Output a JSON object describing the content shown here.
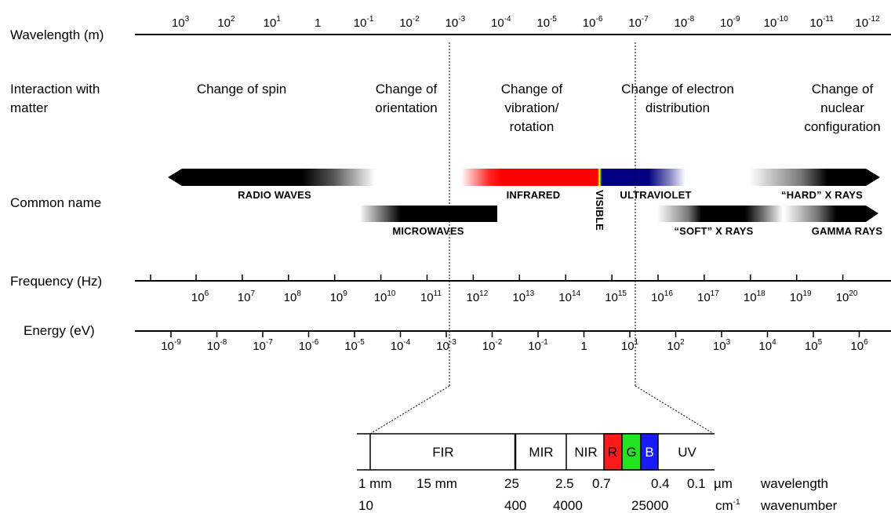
{
  "rows": {
    "wavelength": "Wavelength (m)",
    "interaction": [
      "Interaction with",
      "matter"
    ],
    "common": "Common name",
    "frequency": "Frequency (Hz)",
    "energy": "Energy (eV)"
  },
  "wavelength_ticks": [
    {
      "base": "10",
      "exp": "3"
    },
    {
      "base": "10",
      "exp": "2"
    },
    {
      "base": "10",
      "exp": "1"
    },
    {
      "base": "1",
      "exp": ""
    },
    {
      "base": "10",
      "exp": "-1"
    },
    {
      "base": "10",
      "exp": "-2"
    },
    {
      "base": "10",
      "exp": "-3"
    },
    {
      "base": "10",
      "exp": "-4"
    },
    {
      "base": "10",
      "exp": "-5"
    },
    {
      "base": "10",
      "exp": "-6"
    },
    {
      "base": "10",
      "exp": "-7"
    },
    {
      "base": "10",
      "exp": "-8"
    },
    {
      "base": "10",
      "exp": "-9"
    },
    {
      "base": "10",
      "exp": "-10"
    },
    {
      "base": "10",
      "exp": "-11"
    },
    {
      "base": "10",
      "exp": "-12"
    }
  ],
  "interactions": [
    [
      "Change of spin"
    ],
    [
      "Change of",
      "orientation"
    ],
    [
      "Change of",
      "vibration/",
      "rotation"
    ],
    [
      "Change of electron",
      "distribution"
    ],
    [
      "Change of",
      "nuclear",
      "configuration"
    ]
  ],
  "bands": {
    "radio": "RADIO WAVES",
    "microwaves": "MICROWAVES",
    "infrared": "INFRARED",
    "visible": "VISIBLE",
    "ultraviolet": "ULTRAVIOLET",
    "soft_xrays": "“SOFT” X RAYS",
    "hard_xrays": "“HARD” X RAYS",
    "gamma": "GAMMA RAYS"
  },
  "frequency_ticks": [
    {
      "base": "10",
      "exp": "6"
    },
    {
      "base": "10",
      "exp": "7"
    },
    {
      "base": "10",
      "exp": "8"
    },
    {
      "base": "10",
      "exp": "9"
    },
    {
      "base": "10",
      "exp": "10"
    },
    {
      "base": "10",
      "exp": "11"
    },
    {
      "base": "10",
      "exp": "12"
    },
    {
      "base": "10",
      "exp": "13"
    },
    {
      "base": "10",
      "exp": "14"
    },
    {
      "base": "10",
      "exp": "15"
    },
    {
      "base": "10",
      "exp": "16"
    },
    {
      "base": "10",
      "exp": "17"
    },
    {
      "base": "10",
      "exp": "18"
    },
    {
      "base": "10",
      "exp": "19"
    },
    {
      "base": "10",
      "exp": "20"
    }
  ],
  "energy_ticks": [
    {
      "base": "10",
      "exp": "-9"
    },
    {
      "base": "10",
      "exp": "-8"
    },
    {
      "base": "10",
      "exp": "-7"
    },
    {
      "base": "10",
      "exp": "-6"
    },
    {
      "base": "10",
      "exp": "-5"
    },
    {
      "base": "10",
      "exp": "-4"
    },
    {
      "base": "10",
      "exp": "-3"
    },
    {
      "base": "10",
      "exp": "-2"
    },
    {
      "base": "10",
      "exp": "-1"
    },
    {
      "base": "1",
      "exp": ""
    },
    {
      "base": "10",
      "exp": "1"
    },
    {
      "base": "10",
      "exp": "2"
    },
    {
      "base": "10",
      "exp": "3"
    },
    {
      "base": "10",
      "exp": "4"
    },
    {
      "base": "10",
      "exp": "5"
    },
    {
      "base": "10",
      "exp": "6"
    }
  ],
  "detail": {
    "boxes": [
      "FIR",
      "MIR",
      "NIR",
      "R",
      "G",
      "B",
      "UV"
    ],
    "colors": {
      "r": "#ff1a1a",
      "g": "#22e51f",
      "b": "#1a1aff"
    },
    "wavelength_values": [
      "1 mm",
      "15 mm",
      "25",
      "2.5",
      "0.7",
      "0.4",
      "0.1",
      "µm"
    ],
    "wavelength_label": "wavelength",
    "wavenumber_values": [
      "10",
      "400",
      "4000",
      "25000"
    ],
    "wavenumber_unit": {
      "base": "cm",
      "exp": "-1"
    },
    "wavenumber_label": "wavenumber"
  }
}
